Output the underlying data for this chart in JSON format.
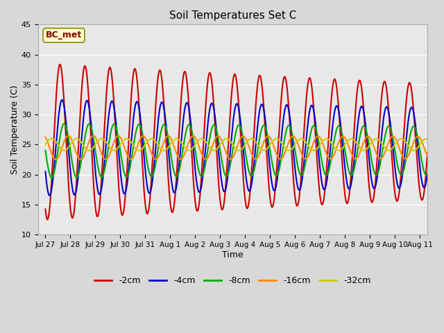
{
  "title": "Soil Temperatures Set C",
  "xlabel": "Time",
  "ylabel": "Soil Temperature (C)",
  "ylim": [
    10,
    45
  ],
  "annotation": "BC_met",
  "bg_color": "#d8d8d8",
  "plot_bg_color": "#e8e8e8",
  "series": [
    {
      "label": "-2cm",
      "color": "#cc0000",
      "amplitude": 13.0,
      "mean": 25.5,
      "phase_shift": 0.0,
      "decay": 0.0008
    },
    {
      "label": "-4cm",
      "color": "#0000cc",
      "amplitude": 8.0,
      "mean": 24.5,
      "phase_shift": 2.0,
      "decay": 0.0005
    },
    {
      "label": "-8cm",
      "color": "#00aa00",
      "amplitude": 4.5,
      "mean": 24.0,
      "phase_shift": 4.0,
      "decay": 0.0003
    },
    {
      "label": "-16cm",
      "color": "#ff8800",
      "amplitude": 2.0,
      "mean": 24.5,
      "phase_shift": 8.0,
      "decay": 0.0002
    },
    {
      "label": "-32cm",
      "color": "#cccc00",
      "amplitude": 1.0,
      "mean": 25.0,
      "phase_shift": 16.0,
      "decay": 0.0001
    }
  ],
  "xtick_labels": [
    "Jul 27",
    "Jul 28",
    "Jul 29",
    "Jul 30",
    "Jul 31",
    "Aug 1",
    "Aug 2",
    "Aug 3",
    "Aug 4",
    "Aug 5",
    "Aug 6",
    "Aug 7",
    "Aug 8",
    "Aug 9",
    "Aug 10",
    "Aug 11"
  ],
  "ytick_values": [
    10,
    15,
    20,
    25,
    30,
    35,
    40,
    45
  ],
  "grid_color": "#ffffff",
  "line_width": 1.5
}
